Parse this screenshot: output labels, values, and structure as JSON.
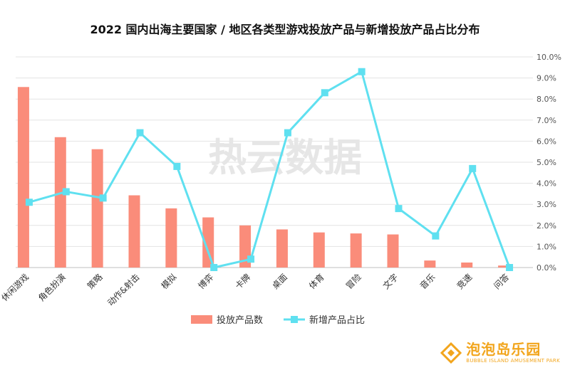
{
  "chart_data": {
    "type": "bar+line",
    "title": "2022 国内出海主要国家 / 地区各类型游戏投放产品与新增投放产品占比分布",
    "categories": [
      "休闲游戏",
      "角色扮演",
      "策略",
      "动作&射击",
      "模拟",
      "博弈",
      "卡牌",
      "桌面",
      "体育",
      "冒险",
      "文字",
      "音乐",
      "竞速",
      "问答"
    ],
    "series": [
      {
        "name": "投放产品数",
        "type": "bar",
        "axis": "left",
        "color": "#fa8c7a",
        "values": [
          9.0,
          6.5,
          5.9,
          3.6,
          2.95,
          2.5,
          2.1,
          1.9,
          1.75,
          1.7,
          1.65,
          0.35,
          0.25,
          0.1
        ]
      },
      {
        "name": "新增产品占比",
        "type": "line",
        "axis": "right",
        "color": "#5fe0f0",
        "values": [
          3.1,
          3.6,
          3.3,
          6.4,
          4.8,
          0.0,
          0.4,
          6.4,
          8.3,
          9.3,
          2.8,
          1.5,
          4.7,
          0.0
        ]
      }
    ],
    "y_left_range": [
      0,
      10.5
    ],
    "y_right_range": [
      0,
      10
    ],
    "y_right_ticks": [
      "0.0%",
      "1.0%",
      "2.0%",
      "3.0%",
      "4.0%",
      "5.0%",
      "6.0%",
      "7.0%",
      "8.0%",
      "9.0%",
      "10.0%"
    ],
    "grid": true,
    "legend_position": "bottom"
  },
  "watermark": "热云数据",
  "logo": {
    "name": "泡泡岛乐园",
    "subtitle": "BUBBLE ISLAND AMUSEMENT PARK"
  }
}
